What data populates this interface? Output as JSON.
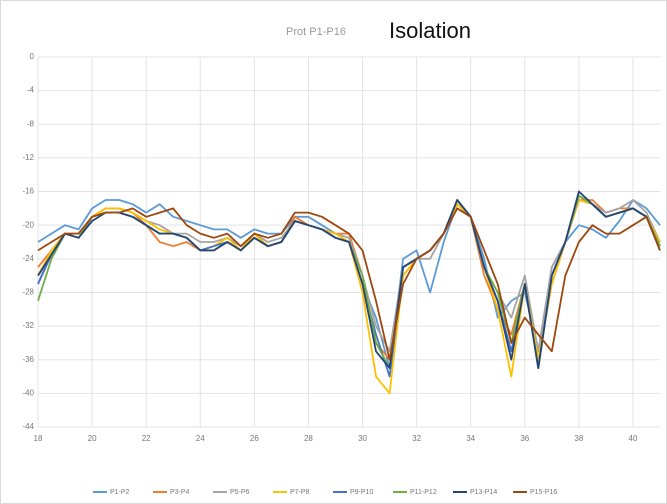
{
  "chart_data": {
    "type": "line",
    "subtitle": "Prot P1-P16",
    "title": "Isolation",
    "x": [
      18,
      18.5,
      19,
      19.5,
      20,
      20.5,
      21,
      21.5,
      22,
      22.5,
      23,
      23.5,
      24,
      24.5,
      25,
      25.5,
      26,
      26.5,
      27,
      27.5,
      28,
      28.5,
      29,
      29.5,
      30,
      30.5,
      31,
      31.5,
      32,
      32.5,
      33,
      33.5,
      34,
      34.5,
      35,
      35.5,
      36,
      36.5,
      37,
      37.5,
      38,
      38.5,
      39,
      39.5,
      40,
      40.5,
      41
    ],
    "xlim": [
      18,
      41
    ],
    "xticks": [
      18,
      20,
      22,
      24,
      26,
      28,
      30,
      32,
      34,
      36,
      38,
      40
    ],
    "ylim": [
      -44,
      0
    ],
    "yticks": [
      0,
      -4,
      -8,
      -12,
      -16,
      -20,
      -24,
      -28,
      -32,
      -36,
      -40,
      -44
    ],
    "grid": true,
    "legend": "bottom",
    "series": [
      {
        "name": "P1-P2",
        "color": "#5b9bd5",
        "values": [
          -22,
          -21,
          -20,
          -20.5,
          -18,
          -17,
          -17,
          -17.5,
          -18.5,
          -17.5,
          -19,
          -19.5,
          -20,
          -20.5,
          -20.5,
          -21.5,
          -20.5,
          -21,
          -21,
          -19,
          -19,
          -20,
          -21,
          -22,
          -27,
          -31,
          -37,
          -24,
          -23,
          -28,
          -22,
          -17.5,
          -19,
          -24,
          -31,
          -29,
          -28,
          -35,
          -25,
          -22,
          -20,
          -20.5,
          -21.5,
          -19.5,
          -17,
          -18,
          -20
        ]
      },
      {
        "name": "P3-P4",
        "color": "#ed7d31",
        "values": [
          -25,
          -23,
          -21,
          -21,
          -19,
          -18,
          -18,
          -18.5,
          -20,
          -22,
          -22.5,
          -22,
          -23,
          -23,
          -22,
          -23,
          -21,
          -22.5,
          -22,
          -19,
          -20,
          -20.5,
          -21,
          -21,
          -26,
          -34,
          -36,
          -26,
          -24,
          -23,
          -21,
          -18,
          -19,
          -26,
          -30,
          -33,
          -27,
          -36,
          -27,
          -22,
          -17,
          -17,
          -18.5,
          -18,
          -18,
          -19,
          -22
        ]
      },
      {
        "name": "P5-P6",
        "color": "#a5a5a5",
        "values": [
          -27,
          -23,
          -21,
          -21,
          -19,
          -18,
          -18,
          -18.5,
          -19.5,
          -20,
          -21,
          -21,
          -22,
          -22,
          -21.5,
          -22.5,
          -21,
          -22,
          -21.5,
          -19.5,
          -20,
          -20.5,
          -21,
          -21.5,
          -26,
          -32,
          -35,
          -25,
          -24,
          -24,
          -21,
          -17.5,
          -19,
          -25,
          -28,
          -31,
          -26,
          -35,
          -25,
          -22,
          -17,
          -17.5,
          -18.5,
          -18,
          -17,
          -18.5,
          -22
        ]
      },
      {
        "name": "P7-P8",
        "color": "#ffc000",
        "values": [
          -26,
          -23,
          -21,
          -21,
          -19,
          -18,
          -18,
          -18.5,
          -19.5,
          -20.5,
          -21,
          -21.5,
          -23,
          -22.5,
          -21.5,
          -23,
          -21,
          -22.5,
          -22,
          -19.5,
          -20,
          -20.5,
          -21,
          -22,
          -28,
          -38,
          -40,
          -26,
          -24,
          -23,
          -21,
          -17.5,
          -19,
          -25,
          -30,
          -38,
          -27,
          -36,
          -27,
          -22,
          -17,
          -17.5,
          -19,
          -18.5,
          -18,
          -19,
          -22
        ]
      },
      {
        "name": "P9-P10",
        "color": "#4472c4",
        "values": [
          -27,
          -23.5,
          -21,
          -21.5,
          -19,
          -18.5,
          -18.5,
          -19,
          -20,
          -21,
          -21,
          -21.5,
          -23,
          -22.5,
          -22,
          -23,
          -21.5,
          -22.5,
          -22,
          -19.5,
          -20,
          -20.5,
          -21.5,
          -22,
          -27,
          -33,
          -38,
          -25,
          -24,
          -23,
          -21,
          -17,
          -19,
          -25,
          -29,
          -35,
          -27,
          -37,
          -26,
          -22,
          -16.5,
          -17.5,
          -19,
          -18.5,
          -18,
          -19,
          -22.5
        ]
      },
      {
        "name": "P11-P12",
        "color": "#70ad47",
        "values": [
          -29,
          -24,
          -21,
          -21.5,
          -19,
          -18.5,
          -18.5,
          -19,
          -20,
          -21,
          -21,
          -21.5,
          -23,
          -23,
          -22,
          -23,
          -21.5,
          -22.5,
          -22,
          -19.5,
          -20,
          -20.5,
          -21.5,
          -22,
          -26,
          -34,
          -37,
          -25,
          -24,
          -23,
          -21,
          -17,
          -19,
          -25,
          -28,
          -34,
          -27,
          -37,
          -26,
          -22,
          -16.5,
          -17.5,
          -19,
          -18.5,
          -18,
          -19,
          -22.5
        ]
      },
      {
        "name": "P13-P14",
        "color": "#264478",
        "values": [
          -26,
          -23.5,
          -21,
          -21.5,
          -19.5,
          -18.5,
          -18.5,
          -19,
          -20,
          -21,
          -21,
          -21.5,
          -23,
          -23,
          -22,
          -23,
          -21.5,
          -22.5,
          -22,
          -19.5,
          -20,
          -20.5,
          -21.5,
          -22,
          -27,
          -35,
          -37,
          -25,
          -24,
          -23,
          -21,
          -17,
          -19,
          -25,
          -29,
          -36,
          -27,
          -37,
          -26,
          -22,
          -16,
          -17.5,
          -19,
          -18.5,
          -18,
          -19,
          -23
        ]
      },
      {
        "name": "P15-P16",
        "color": "#9e480e",
        "values": [
          -23,
          -22,
          -21,
          -21,
          -19,
          -18.5,
          -18.5,
          -18,
          -19,
          -18.5,
          -18,
          -20,
          -21,
          -21.5,
          -21,
          -22.5,
          -21,
          -21.5,
          -21,
          -18.5,
          -18.5,
          -19,
          -20,
          -21,
          -23,
          -29,
          -36,
          -27,
          -24,
          -23,
          -21,
          -18,
          -19,
          -23,
          -27,
          -34,
          -31,
          -33,
          -35,
          -26,
          -22,
          -20,
          -21,
          -21,
          -20,
          -19,
          -23
        ]
      }
    ]
  }
}
